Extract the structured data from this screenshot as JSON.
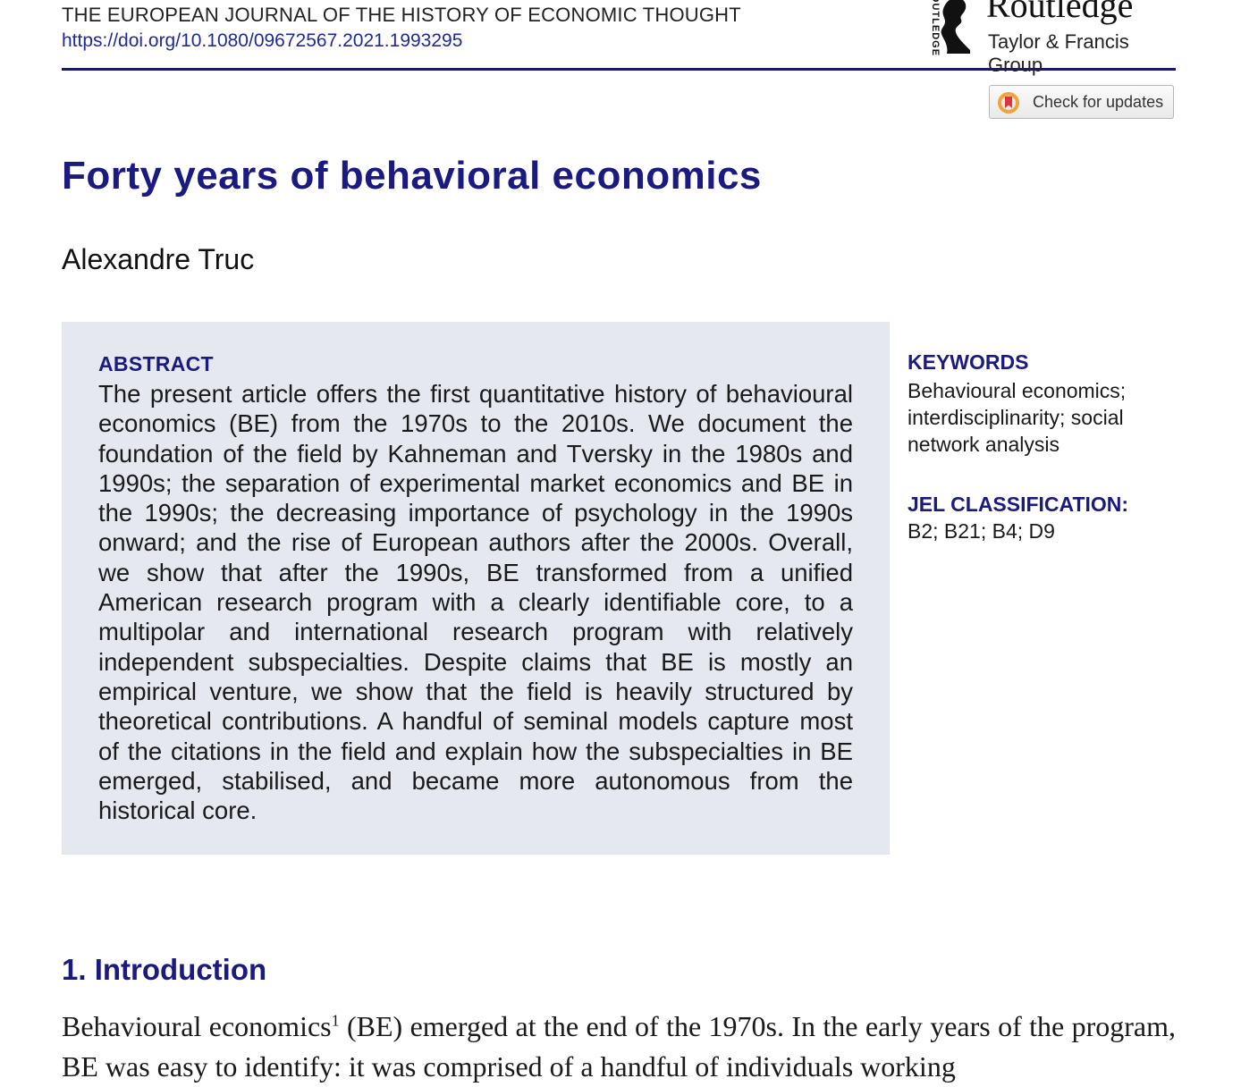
{
  "header": {
    "journal": "THE EUROPEAN JOURNAL OF THE HISTORY OF ECONOMIC THOUGHT",
    "doi": "https://doi.org/10.1080/09672567.2021.1993295"
  },
  "publisher": {
    "vertical_label": "ROUTLEDGE",
    "name": "Routledge",
    "group": "Taylor & Francis Group"
  },
  "updates_button": {
    "label": "Check for updates"
  },
  "article": {
    "title": "Forty years of behavioral economics",
    "author": "Alexandre Truc"
  },
  "abstract": {
    "heading": "ABSTRACT",
    "text": "The present article offers the first quantitative history of behavioural economics (BE) from the 1970s to the 2010s. We document the foundation of the field by Kahneman and Tversky in the 1980s and 1990s; the separation of experimental market economics and BE in the 1990s; the decreasing importance of psychology in the 1990s onward; and the rise of European authors after the 2000s. Overall, we show that after the 1990s, BE transformed from a unified American research program with a clearly identifiable core, to a multipolar and international research program with relatively independent subspecialties. Despite claims that BE is mostly an empirical venture, we show that the field is heavily structured by theoretical contributions. A handful of seminal models capture most of the citations in the field and explain how the subspecialties in BE emerged, stabilised, and became more autonomous from the historical core."
  },
  "keywords": {
    "heading": "KEYWORDS",
    "text": "Behavioural economics; interdisciplinarity; social network analysis"
  },
  "jel": {
    "heading": "JEL CLASSIFICATION:",
    "text": "B2; B21; B4; D9"
  },
  "introduction": {
    "heading": "1. Introduction",
    "text_before_note": "Behavioural economics",
    "footnote": "1",
    "text_after_note": " (BE) emerged at the end of the 1970s. In the early years of the program, BE was easy to identify: it was comprised of a handful of individuals working"
  },
  "colors": {
    "accent": "#1a1a80",
    "link": "#1f2a9a",
    "abstract_bg": "#e6e8f0"
  }
}
